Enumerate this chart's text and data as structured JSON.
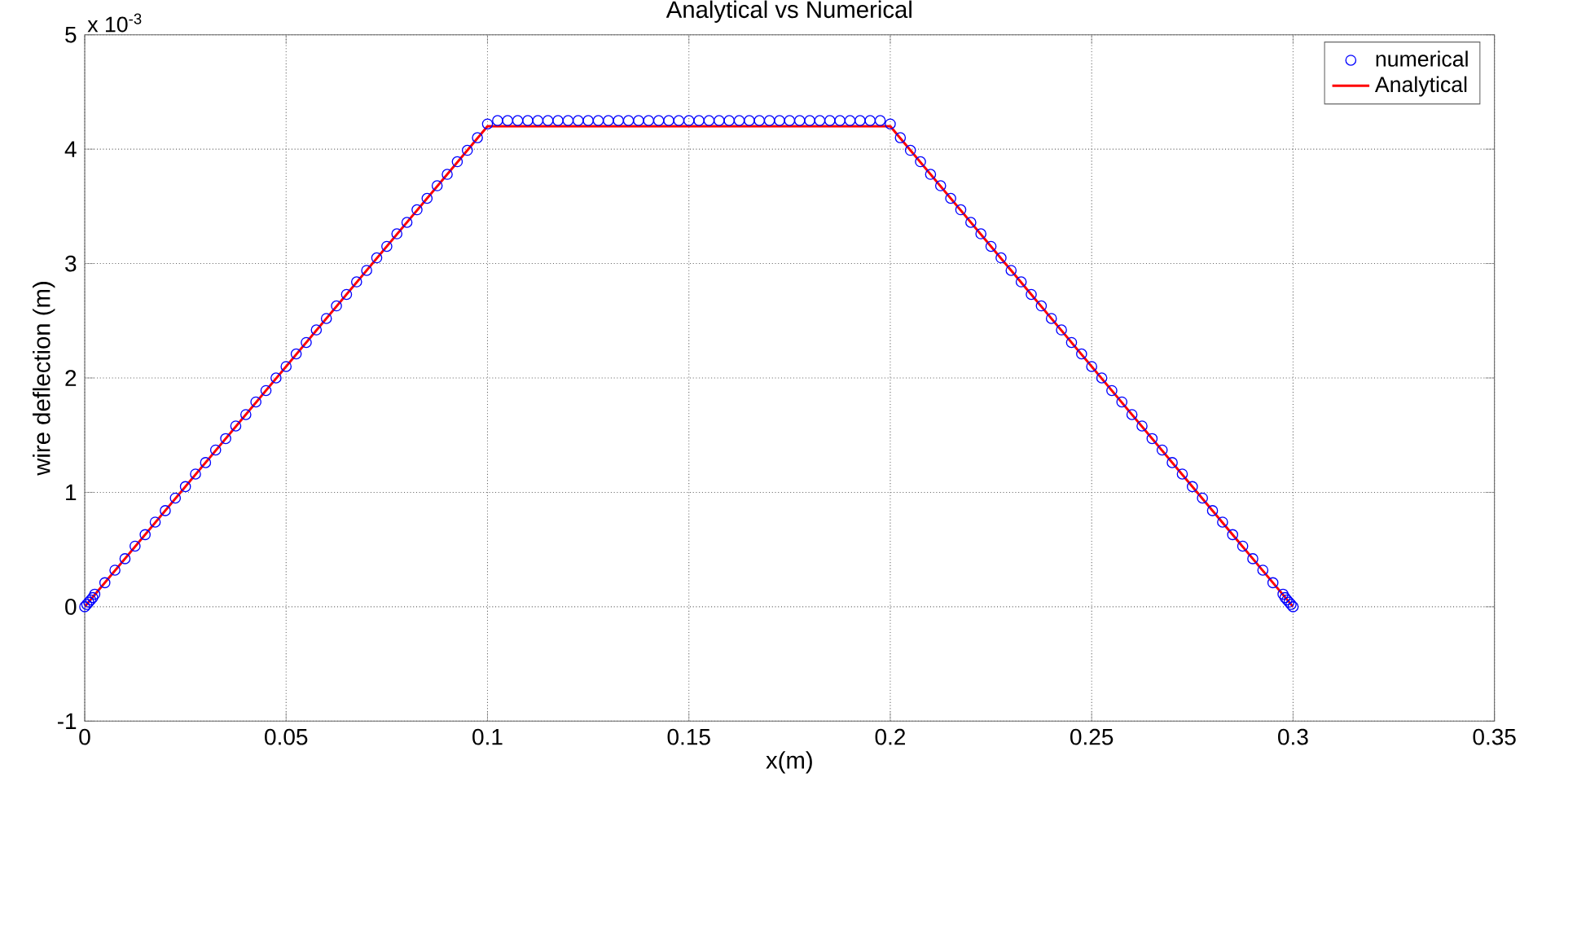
{
  "chart_data": {
    "type": "line",
    "title": "Analytical vs Numerical",
    "xlabel": "x(m)",
    "ylabel": "wire deflection (m)",
    "xlim": [
      0,
      0.35
    ],
    "ylim": [
      -1,
      5
    ],
    "xticks": [
      0,
      0.05,
      0.1,
      0.15,
      0.2,
      0.25,
      0.3,
      0.35
    ],
    "yticks": [
      -1,
      0,
      1,
      2,
      3,
      4,
      5
    ],
    "grid": true,
    "legend": "top right",
    "annotations": [
      "x 10$^{-3}$"
    ],
    "series": [
      {
        "name": "numerical",
        "type": "scatter",
        "marker": "circle",
        "color": "#0000ff",
        "x": [
          0,
          0.0005,
          0.001,
          0.0015,
          0.002,
          0.0025,
          0.005,
          0.0075,
          0.01,
          0.0125,
          0.015,
          0.0175,
          0.02,
          0.0225,
          0.025,
          0.0275,
          0.03,
          0.0325,
          0.035,
          0.0375,
          0.04,
          0.0425,
          0.045,
          0.0475,
          0.05,
          0.0525,
          0.055,
          0.0575,
          0.06,
          0.0625,
          0.065,
          0.0675,
          0.07,
          0.0725,
          0.075,
          0.0775,
          0.08,
          0.0825,
          0.085,
          0.0875,
          0.09,
          0.0925,
          0.095,
          0.0975,
          0.1,
          0.1025,
          0.105,
          0.1075,
          0.11,
          0.1125,
          0.115,
          0.1175,
          0.12,
          0.1225,
          0.125,
          0.1275,
          0.13,
          0.1325,
          0.135,
          0.1375,
          0.14,
          0.1425,
          0.145,
          0.1475,
          0.15,
          0.1525,
          0.155,
          0.1575,
          0.16,
          0.1625,
          0.165,
          0.1675,
          0.17,
          0.1725,
          0.175,
          0.1775,
          0.18,
          0.1825,
          0.185,
          0.1875,
          0.19,
          0.1925,
          0.195,
          0.1975,
          0.2,
          0.2025,
          0.205,
          0.2075,
          0.21,
          0.2125,
          0.215,
          0.2175,
          0.22,
          0.2225,
          0.225,
          0.2275,
          0.23,
          0.2325,
          0.235,
          0.2375,
          0.24,
          0.2425,
          0.245,
          0.2475,
          0.25,
          0.2525,
          0.255,
          0.2575,
          0.26,
          0.2625,
          0.265,
          0.2675,
          0.27,
          0.2725,
          0.275,
          0.2775,
          0.28,
          0.2825,
          0.285,
          0.2875,
          0.29,
          0.2925,
          0.295,
          0.2975,
          0.298,
          0.2985,
          0.299,
          0.2995,
          0.3
        ],
        "values": [
          0,
          0.02,
          0.04,
          0.06,
          0.08,
          0.11,
          0.21,
          0.32,
          0.42,
          0.53,
          0.63,
          0.74,
          0.84,
          0.95,
          1.05,
          1.16,
          1.26,
          1.37,
          1.47,
          1.58,
          1.68,
          1.79,
          1.89,
          2.0,
          2.1,
          2.21,
          2.31,
          2.42,
          2.52,
          2.63,
          2.73,
          2.84,
          2.94,
          3.05,
          3.15,
          3.26,
          3.36,
          3.47,
          3.57,
          3.68,
          3.78,
          3.89,
          3.99,
          4.1,
          4.22,
          4.25,
          4.25,
          4.25,
          4.25,
          4.25,
          4.25,
          4.25,
          4.25,
          4.25,
          4.25,
          4.25,
          4.25,
          4.25,
          4.25,
          4.25,
          4.25,
          4.25,
          4.25,
          4.25,
          4.25,
          4.25,
          4.25,
          4.25,
          4.25,
          4.25,
          4.25,
          4.25,
          4.25,
          4.25,
          4.25,
          4.25,
          4.25,
          4.25,
          4.25,
          4.25,
          4.25,
          4.25,
          4.25,
          4.25,
          4.22,
          4.1,
          3.99,
          3.89,
          3.78,
          3.68,
          3.57,
          3.47,
          3.36,
          3.26,
          3.15,
          3.05,
          2.94,
          2.84,
          2.73,
          2.63,
          2.52,
          2.42,
          2.31,
          2.21,
          2.1,
          2.0,
          1.89,
          1.79,
          1.68,
          1.58,
          1.47,
          1.37,
          1.26,
          1.16,
          1.05,
          0.95,
          0.84,
          0.74,
          0.63,
          0.53,
          0.42,
          0.32,
          0.21,
          0.11,
          0.08,
          0.06,
          0.04,
          0.02,
          0
        ]
      },
      {
        "name": "Analytical",
        "type": "line",
        "color": "#ff0000",
        "x": [
          0,
          0.1,
          0.2,
          0.3
        ],
        "values": [
          0,
          4.2,
          4.2,
          0
        ]
      }
    ]
  }
}
